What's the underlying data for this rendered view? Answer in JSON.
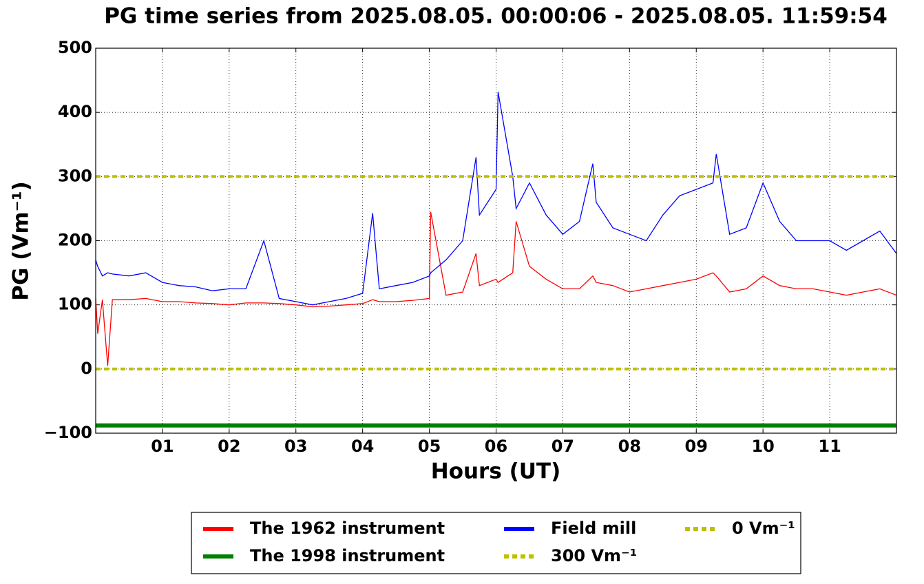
{
  "chart_data": {
    "type": "line",
    "title": "PG time series from 2025.08.05. 00:00:06 - 2025.08.05. 11:59:54",
    "x_label": "Hours (UT)",
    "y_label": "PG (Vm⁻¹)",
    "xlim": [
      0,
      12
    ],
    "xticks": [
      {
        "value": 1,
        "label": "01"
      },
      {
        "value": 2,
        "label": "02"
      },
      {
        "value": 3,
        "label": "03"
      },
      {
        "value": 4,
        "label": "04"
      },
      {
        "value": 5,
        "label": "05"
      },
      {
        "value": 6,
        "label": "06"
      },
      {
        "value": 7,
        "label": "07"
      },
      {
        "value": 8,
        "label": "08"
      },
      {
        "value": 9,
        "label": "09"
      },
      {
        "value": 10,
        "label": "10"
      },
      {
        "value": 11,
        "label": "11"
      }
    ],
    "ylim": [
      -100,
      500
    ],
    "yticks": [
      {
        "value": -100,
        "label": "−100"
      },
      0,
      100,
      200,
      300,
      400,
      500
    ],
    "grid": true,
    "legend": "below",
    "legend_columns": 3,
    "series": [
      {
        "name": "The 1962 instrument",
        "color": "#ff0000",
        "style": "solid",
        "width": 1.3,
        "x": [
          0,
          0.03,
          0.1,
          0.18,
          0.25,
          0.5,
          0.75,
          1,
          1.25,
          1.5,
          1.75,
          2,
          2.25,
          2.52,
          2.75,
          3,
          3.25,
          3.5,
          3.75,
          4,
          4.15,
          4.25,
          4.5,
          4.75,
          5,
          5.02,
          5.25,
          5.5,
          5.7,
          5.75,
          6,
          6.03,
          6.25,
          6.3,
          6.5,
          6.75,
          7,
          7.25,
          7.45,
          7.5,
          7.75,
          8,
          8.25,
          8.5,
          8.75,
          9,
          9.25,
          9.3,
          9.5,
          9.75,
          10,
          10.25,
          10.5,
          10.75,
          11,
          11.25,
          11.5,
          11.75,
          12
        ],
        "values": [
          110,
          55,
          108,
          5,
          108,
          108,
          110,
          105,
          105,
          103,
          102,
          100,
          103,
          103,
          102,
          100,
          97,
          98,
          100,
          102,
          108,
          105,
          105,
          107,
          110,
          245,
          115,
          120,
          180,
          130,
          140,
          135,
          150,
          230,
          160,
          140,
          125,
          125,
          145,
          135,
          130,
          120,
          125,
          130,
          135,
          140,
          150,
          145,
          120,
          125,
          145,
          130,
          125,
          125,
          120,
          115,
          120,
          125,
          115
        ]
      },
      {
        "name": "The 1998 instrument",
        "color": "#008000",
        "style": "solid",
        "width": 6,
        "x": [
          0,
          12
        ],
        "values": [
          -88,
          -88
        ]
      },
      {
        "name": "Field mill",
        "color": "#0000ff",
        "style": "solid",
        "width": 1.3,
        "x": [
          0,
          0.03,
          0.1,
          0.18,
          0.25,
          0.5,
          0.75,
          1,
          1.25,
          1.5,
          1.75,
          2,
          2.25,
          2.52,
          2.75,
          3,
          3.25,
          3.5,
          3.75,
          4,
          4.15,
          4.25,
          4.5,
          4.75,
          5,
          5.02,
          5.25,
          5.5,
          5.7,
          5.75,
          6,
          6.03,
          6.25,
          6.3,
          6.5,
          6.75,
          7,
          7.25,
          7.45,
          7.5,
          7.75,
          8,
          8.25,
          8.5,
          8.75,
          9,
          9.25,
          9.3,
          9.5,
          9.75,
          10,
          10.25,
          10.5,
          10.75,
          11,
          11.25,
          11.5,
          11.75,
          12
        ],
        "values": [
          170,
          160,
          145,
          150,
          148,
          145,
          150,
          135,
          130,
          128,
          122,
          125,
          125,
          200,
          110,
          105,
          100,
          105,
          110,
          118,
          243,
          125,
          130,
          135,
          145,
          150,
          170,
          200,
          330,
          240,
          280,
          432,
          300,
          250,
          290,
          240,
          210,
          230,
          320,
          260,
          220,
          210,
          200,
          240,
          270,
          280,
          290,
          335,
          210,
          220,
          290,
          230,
          200,
          200,
          200,
          185,
          200,
          215,
          180
        ]
      },
      {
        "name": "300 Vm⁻¹",
        "color": "#bfbf00",
        "style": "dotted",
        "width": 4,
        "x": [
          0,
          12
        ],
        "values": [
          300,
          300
        ]
      },
      {
        "name": "0 Vm⁻¹",
        "color": "#bfbf00",
        "style": "dotted",
        "width": 4,
        "x": [
          0,
          12
        ],
        "values": [
          0,
          0
        ]
      }
    ]
  }
}
